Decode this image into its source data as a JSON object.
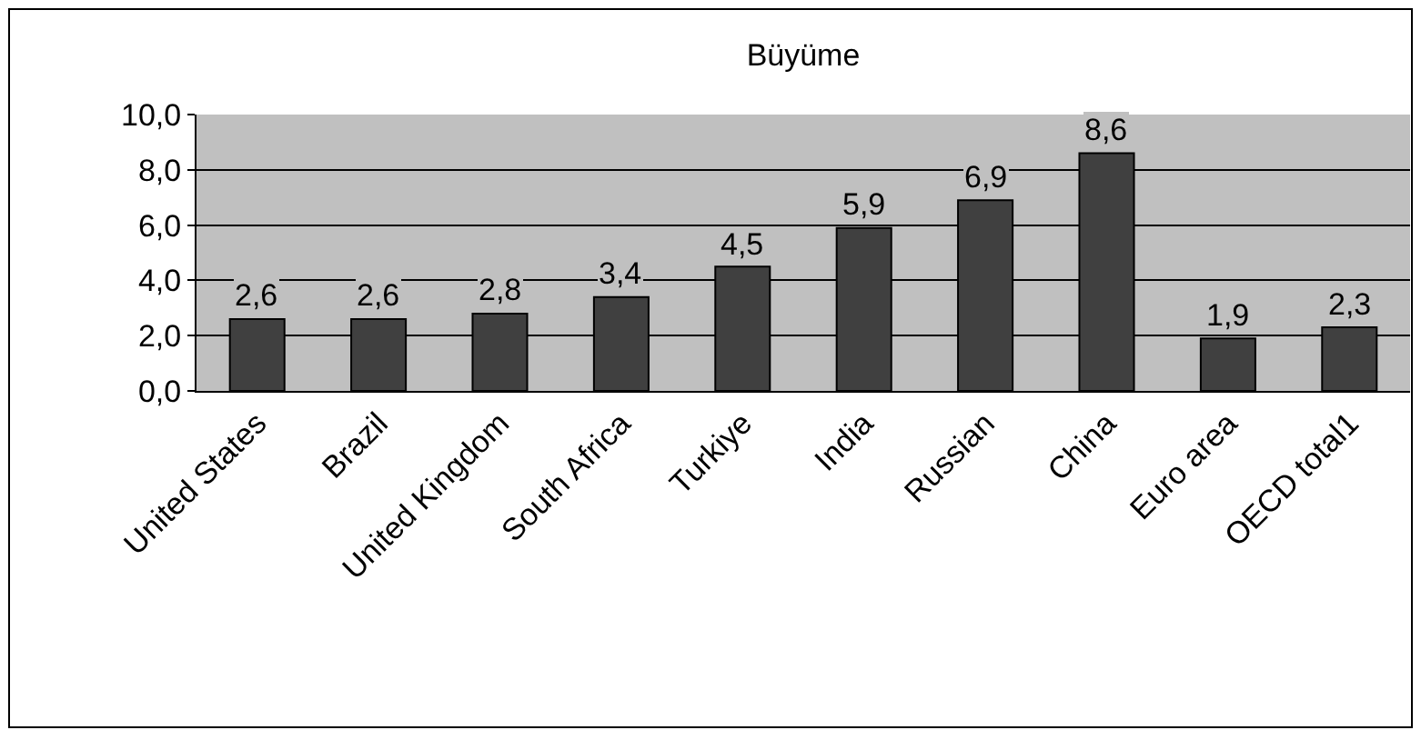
{
  "chart_data": {
    "type": "bar",
    "title": "Büyüme",
    "categories": [
      "United States",
      "Brazil",
      "United Kingdom",
      "South Africa",
      "Turkiye",
      "India",
      "Russian",
      "China",
      "Euro area",
      "OECD total1"
    ],
    "values": [
      2.6,
      2.6,
      2.8,
      3.4,
      4.5,
      5.9,
      6.9,
      8.6,
      1.9,
      2.3
    ],
    "value_labels": [
      "2,6",
      "2,6",
      "2,8",
      "3,4",
      "4,5",
      "5,9",
      "6,9",
      "8,6",
      "1,9",
      "2,3"
    ],
    "color": "#404040",
    "ylim": [
      0,
      10
    ],
    "yticks": [
      {
        "value": 0,
        "label": "0,0"
      },
      {
        "value": 2,
        "label": "2,0"
      },
      {
        "value": 4,
        "label": "4,0"
      },
      {
        "value": 6,
        "label": "6,0"
      },
      {
        "value": 8,
        "label": "8,0"
      },
      {
        "value": 10,
        "label": "10,0"
      }
    ],
    "grid": "y",
    "legend": false
  }
}
